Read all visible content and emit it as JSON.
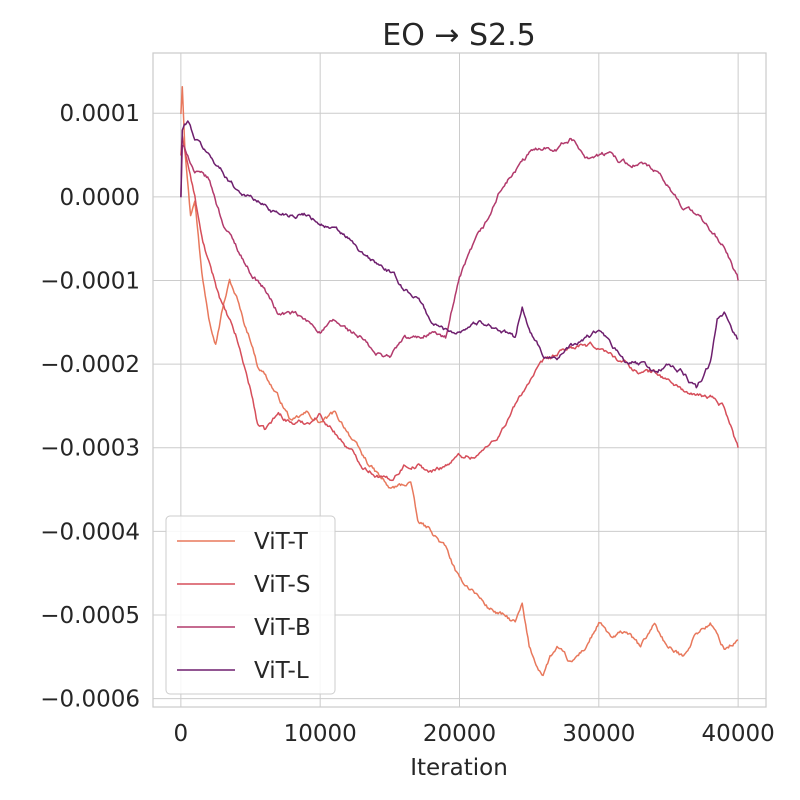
{
  "chart_data": {
    "type": "line",
    "title": "EO → S2.5",
    "xlabel": "Iteration",
    "ylabel": "",
    "xlim": [
      -2000,
      42000
    ],
    "ylim": [
      -0.00061,
      0.000172
    ],
    "xticks": [
      0,
      10000,
      20000,
      30000,
      40000
    ],
    "xtick_labels": [
      "0",
      "10000",
      "20000",
      "30000",
      "40000"
    ],
    "yticks": [
      0.0001,
      0.0,
      -0.0001,
      -0.0002,
      -0.0003,
      -0.0004,
      -0.0005,
      -0.0006
    ],
    "ytick_labels": [
      "0.0001",
      "0.0000",
      "−0.0001",
      "−0.0002",
      "−0.0003",
      "−0.0004",
      "−0.0005",
      "−0.0006"
    ],
    "grid": true,
    "legend_position": "lower-left",
    "series": [
      {
        "name": "ViT-T",
        "color": "#e8785c",
        "x": [
          0,
          100,
          300,
          700,
          1000,
          1500,
          2000,
          2500,
          3000,
          3500,
          4000,
          4500,
          5000,
          5500,
          6000,
          7000,
          8000,
          9000,
          10000,
          11000,
          12000,
          13000,
          14000,
          15000,
          16000,
          16500,
          17000,
          18000,
          19000,
          20000,
          21000,
          22000,
          23000,
          24000,
          24500,
          25000,
          25500,
          26000,
          26500,
          27000,
          28000,
          29000,
          30000,
          31000,
          32000,
          33000,
          34000,
          35000,
          36000,
          37000,
          38000,
          39000,
          40000
        ],
        "values": [
          0.0001,
          0.000135,
          6e-05,
          -2e-05,
          0.0,
          -9e-05,
          -0.00014,
          -0.00017,
          -0.00013,
          -0.0001,
          -0.00012,
          -0.00015,
          -0.00017,
          -0.0002,
          -0.00021,
          -0.00024,
          -0.00027,
          -0.00026,
          -0.00027,
          -0.00026,
          -0.00028,
          -0.00031,
          -0.00033,
          -0.00035,
          -0.000345,
          -0.00034,
          -0.00039,
          -0.0004,
          -0.00042,
          -0.00046,
          -0.00047,
          -0.00049,
          -0.0005,
          -0.00051,
          -0.00049,
          -0.00054,
          -0.00056,
          -0.00057,
          -0.00055,
          -0.00054,
          -0.00056,
          -0.00054,
          -0.00051,
          -0.00053,
          -0.00052,
          -0.00054,
          -0.00051,
          -0.00054,
          -0.00055,
          -0.00052,
          -0.00051,
          -0.00054,
          -0.00053
        ]
      },
      {
        "name": "ViT-S",
        "color": "#d64e5a",
        "x": [
          0,
          100,
          500,
          1000,
          1500,
          2000,
          3000,
          4000,
          5000,
          5500,
          6000,
          7000,
          8000,
          9000,
          10000,
          11000,
          12000,
          13000,
          14000,
          15000,
          16000,
          17000,
          18000,
          19000,
          20000,
          21000,
          22000,
          23000,
          24000,
          25000,
          26000,
          27000,
          28000,
          29000,
          30000,
          31000,
          32000,
          33000,
          34000,
          35000,
          36000,
          37000,
          38000,
          39000,
          40000
        ],
        "values": [
          5e-05,
          7e-05,
          4e-05,
          0.0,
          -5e-05,
          -8e-05,
          -0.00013,
          -0.00017,
          -0.00023,
          -0.00027,
          -0.00028,
          -0.00026,
          -0.00027,
          -0.00027,
          -0.00026,
          -0.00028,
          -0.0003,
          -0.00032,
          -0.00033,
          -0.00034,
          -0.00032,
          -0.00032,
          -0.00033,
          -0.00032,
          -0.00031,
          -0.00031,
          -0.0003,
          -0.00028,
          -0.00025,
          -0.00022,
          -0.0002,
          -0.00019,
          -0.00018,
          -0.00018,
          -0.00018,
          -0.00019,
          -0.0002,
          -0.00021,
          -0.00021,
          -0.00022,
          -0.00023,
          -0.00024,
          -0.00024,
          -0.00025,
          -0.0003
        ]
      },
      {
        "name": "ViT-B",
        "color": "#b23a6c",
        "x": [
          0,
          100,
          500,
          1000,
          2000,
          3000,
          4000,
          5000,
          6000,
          7000,
          8000,
          9000,
          10000,
          11000,
          12000,
          13000,
          14000,
          15000,
          16000,
          17000,
          18000,
          19000,
          20000,
          21000,
          22000,
          23000,
          24000,
          25000,
          26000,
          27000,
          28000,
          29000,
          30000,
          31000,
          32000,
          33000,
          34000,
          35000,
          36000,
          37000,
          38000,
          39000,
          40000
        ],
        "values": [
          0.0,
          6e-05,
          5e-05,
          3e-05,
          2e-05,
          -3e-05,
          -6e-05,
          -9e-05,
          -0.00011,
          -0.00014,
          -0.00014,
          -0.00015,
          -0.00016,
          -0.00015,
          -0.00016,
          -0.00017,
          -0.00019,
          -0.00019,
          -0.00017,
          -0.00017,
          -0.00016,
          -0.00017,
          -0.0001,
          -6e-05,
          -3e-05,
          1e-05,
          3e-05,
          5e-05,
          6e-05,
          6e-05,
          7e-05,
          5e-05,
          5e-05,
          5e-05,
          4e-05,
          4e-05,
          3e-05,
          1e-05,
          -1e-05,
          -2e-05,
          -4e-05,
          -6e-05,
          -0.0001
        ]
      },
      {
        "name": "ViT-L",
        "color": "#6e1f6e",
        "x": [
          0,
          100,
          500,
          1000,
          2000,
          3000,
          4000,
          5000,
          6000,
          7000,
          8000,
          9000,
          10000,
          11000,
          12000,
          13000,
          14000,
          15000,
          16000,
          17000,
          18000,
          19000,
          20000,
          21000,
          22000,
          23000,
          24000,
          24500,
          25000,
          26000,
          27000,
          28000,
          29000,
          30000,
          31000,
          32000,
          33000,
          34000,
          35000,
          36000,
          37000,
          38000,
          38500,
          39000,
          40000
        ],
        "values": [
          0.0,
          8e-05,
          9e-05,
          7e-05,
          5e-05,
          3e-05,
          1e-05,
          0.0,
          -1e-05,
          -2e-05,
          -2e-05,
          -2e-05,
          -3e-05,
          -4e-05,
          -5e-05,
          -7e-05,
          -8e-05,
          -9e-05,
          -0.00011,
          -0.00012,
          -0.00015,
          -0.00016,
          -0.00016,
          -0.00015,
          -0.00015,
          -0.00016,
          -0.00017,
          -0.00013,
          -0.00016,
          -0.00019,
          -0.00019,
          -0.00018,
          -0.00017,
          -0.00016,
          -0.00018,
          -0.0002,
          -0.0002,
          -0.00021,
          -0.0002,
          -0.00021,
          -0.00023,
          -0.0002,
          -0.00015,
          -0.00014,
          -0.00017
        ]
      }
    ]
  }
}
